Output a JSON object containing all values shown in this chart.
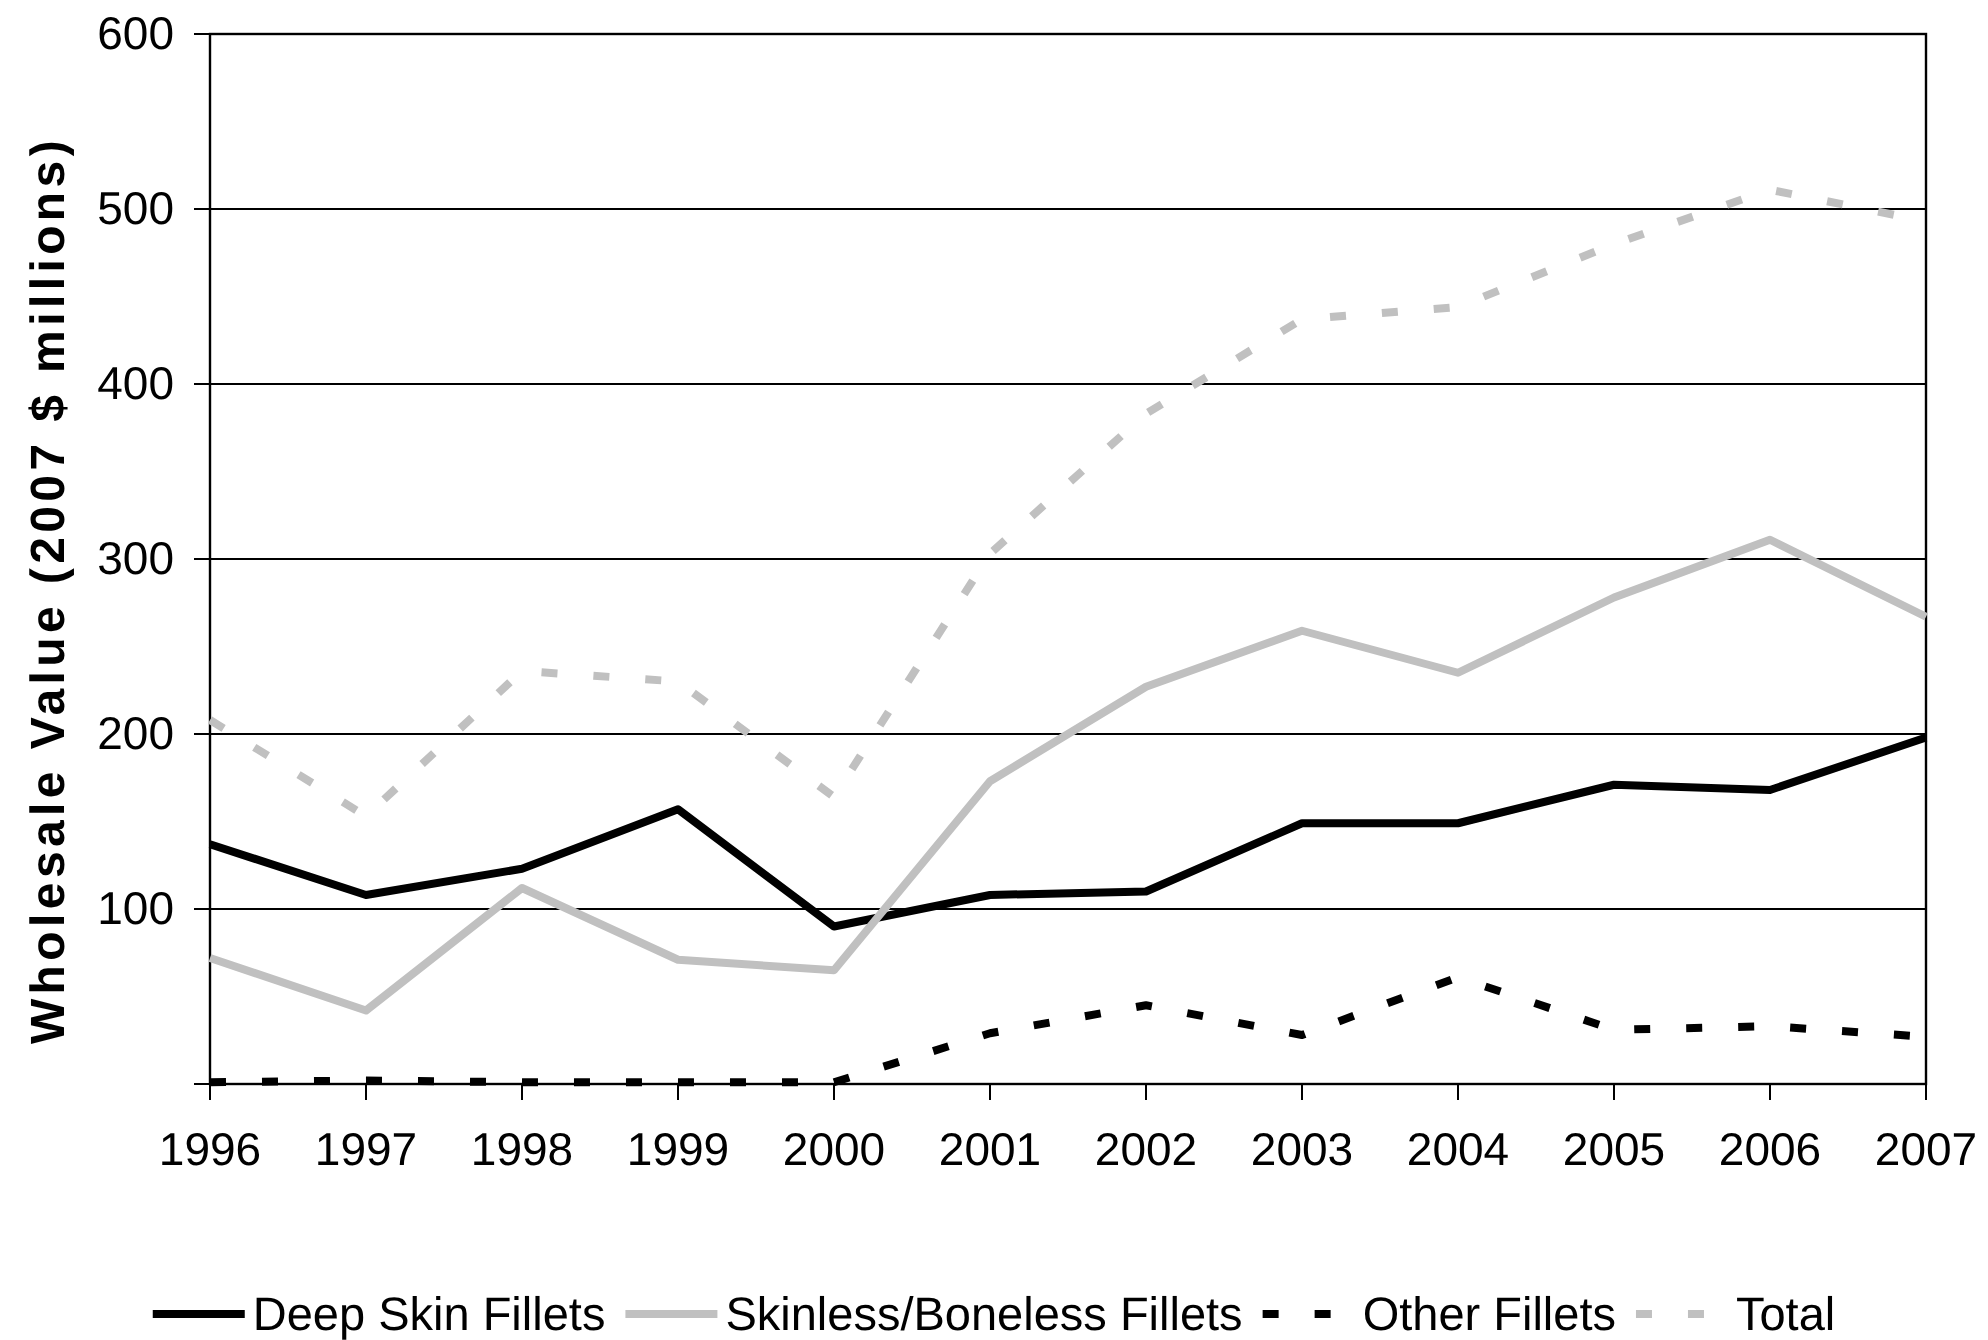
{
  "chart_data": {
    "type": "line",
    "ylabel": "Wholesale Value (2007 $ millions)",
    "x": [
      1996,
      1997,
      1998,
      1999,
      2000,
      2001,
      2002,
      2003,
      2004,
      2005,
      2006,
      2007
    ],
    "xlim": [
      1996,
      2007
    ],
    "xticks": [
      1996,
      1997,
      1998,
      1999,
      2000,
      2001,
      2002,
      2003,
      2004,
      2005,
      2006,
      2007
    ],
    "ylim": [
      0,
      600
    ],
    "yticks": [
      {
        "value": 0,
        "label": null
      },
      100,
      200,
      300,
      400,
      500,
      600
    ],
    "grid": "y",
    "legend": "bottom",
    "series": [
      {
        "name": "Deep Skin Fillets",
        "color": "#000000",
        "line_style": "solid",
        "values": [
          137,
          108,
          123,
          157,
          90,
          108,
          110,
          149,
          149,
          171,
          168,
          198
        ]
      },
      {
        "name": "Skinless/Boneless Fillets",
        "color": "#c0c0c0",
        "line_style": "solid",
        "values": [
          72,
          42,
          112,
          71,
          65,
          173,
          227,
          259,
          235,
          278,
          311,
          267
        ]
      },
      {
        "name": "Other Fillets",
        "color": "#000000",
        "line_style": "dashed",
        "values": [
          1,
          2,
          1,
          1,
          1,
          29,
          45,
          28,
          61,
          31,
          33,
          27
        ]
      },
      {
        "name": "Total",
        "color": "#c0c0c0",
        "line_style": "dashed",
        "values": [
          208,
          153,
          236,
          230,
          164,
          303,
          383,
          437,
          444,
          480,
          511,
          493
        ]
      }
    ]
  }
}
